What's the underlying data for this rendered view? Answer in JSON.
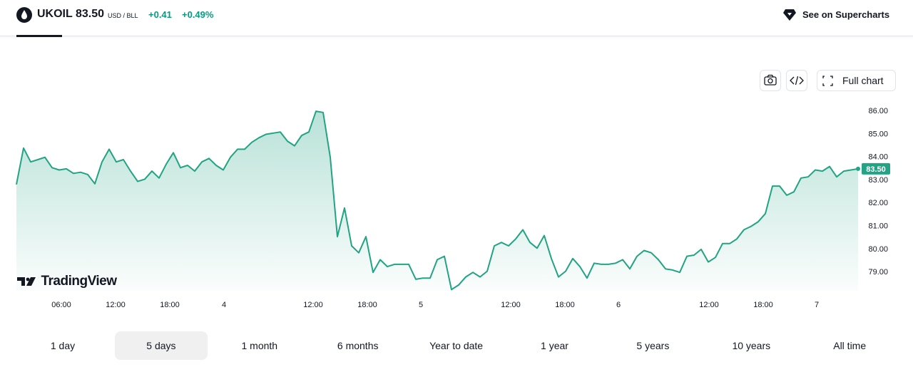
{
  "header": {
    "symbol": "UKOIL",
    "price": "83.50",
    "unit": "USD / BLL",
    "change": "+0.41",
    "change_pct": "+0.49%",
    "link": "See on Supercharts"
  },
  "toolbar": {
    "full_chart": "Full chart"
  },
  "branding": "TradingView",
  "chart_data": {
    "type": "area",
    "values": [
      82.82,
      84.4,
      83.8,
      83.9,
      84.0,
      83.55,
      83.45,
      83.5,
      83.3,
      83.35,
      83.25,
      82.85,
      83.8,
      84.35,
      83.8,
      83.9,
      83.4,
      82.95,
      83.05,
      83.4,
      83.1,
      83.7,
      84.2,
      83.55,
      83.65,
      83.4,
      83.8,
      83.95,
      83.65,
      83.45,
      84.0,
      84.35,
      84.35,
      84.65,
      84.85,
      85.0,
      85.05,
      85.1,
      84.7,
      84.5,
      84.95,
      85.1,
      86.0,
      85.95,
      84.0,
      80.55,
      81.8,
      80.15,
      79.85,
      80.55,
      79.0,
      79.55,
      79.25,
      79.35,
      79.35,
      79.35,
      78.7,
      78.75,
      78.75,
      79.55,
      79.7,
      78.25,
      78.45,
      78.8,
      79.0,
      78.8,
      79.05,
      80.15,
      80.3,
      80.15,
      80.45,
      80.85,
      80.3,
      80.05,
      80.6,
      79.6,
      78.8,
      79.05,
      79.6,
      79.25,
      78.75,
      79.4,
      79.35,
      79.35,
      79.4,
      79.55,
      79.15,
      79.7,
      79.95,
      79.85,
      79.55,
      79.15,
      79.1,
      79.0,
      79.7,
      79.75,
      80.0,
      79.45,
      79.65,
      80.25,
      80.25,
      80.45,
      80.85,
      81.0,
      81.2,
      81.55,
      82.75,
      82.75,
      82.35,
      82.5,
      83.1,
      83.15,
      83.45,
      83.4,
      83.6,
      83.15,
      83.4,
      83.45,
      83.5
    ],
    "color": "#22a383",
    "ylim": [
      78.2,
      86.5
    ],
    "yticks": [
      {
        "value": 79,
        "label": "79.00"
      },
      {
        "value": 80,
        "label": "80.00"
      },
      {
        "value": 81,
        "label": "81.00"
      },
      {
        "value": 82,
        "label": "82.00"
      },
      {
        "value": 83,
        "label": "83.00"
      },
      {
        "value": 84,
        "label": "84.00"
      },
      {
        "value": 85,
        "label": "85.00"
      },
      {
        "value": 86,
        "label": "86.00"
      }
    ],
    "xlim": [
      0,
      118
    ],
    "xticks": [
      {
        "value": 6.3,
        "label": "06:00"
      },
      {
        "value": 13.9,
        "label": "12:00"
      },
      {
        "value": 21.5,
        "label": "18:00"
      },
      {
        "value": 29.1,
        "label": "4"
      },
      {
        "value": 41.6,
        "label": "12:00"
      },
      {
        "value": 49.2,
        "label": "18:00"
      },
      {
        "value": 56.7,
        "label": "5"
      },
      {
        "value": 69.3,
        "label": "12:00"
      },
      {
        "value": 76.9,
        "label": "18:00"
      },
      {
        "value": 84.4,
        "label": "6"
      },
      {
        "value": 97.1,
        "label": "12:00"
      },
      {
        "value": 104.7,
        "label": "18:00"
      },
      {
        "value": 112.2,
        "label": "7"
      }
    ],
    "last_price": {
      "value": 83.5,
      "label": "83.50"
    }
  },
  "range_tabs": {
    "items": [
      "1 day",
      "5 days",
      "1 month",
      "6 months",
      "Year to date",
      "1 year",
      "5 years",
      "10 years",
      "All time"
    ],
    "selected": 1
  }
}
